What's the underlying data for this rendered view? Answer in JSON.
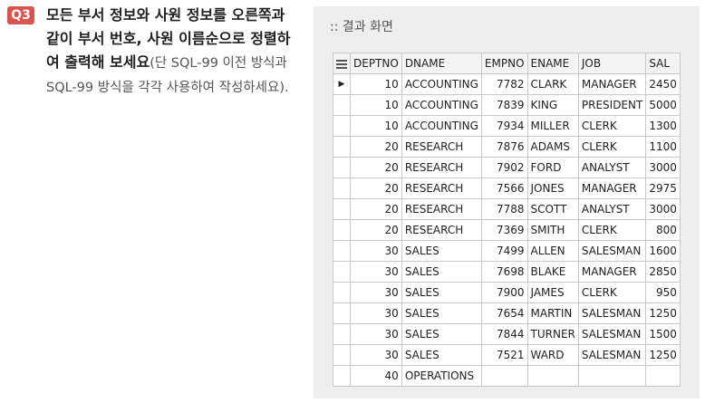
{
  "question": {
    "badge": "Q3",
    "bold_text": "모든 부서 정보와 사원 정보를 오른쪽과 같이 부서 번호, 사원 이름순으로 정렬하여 출력해 보세요",
    "note": "(단 SQL-99 이전 방식과 SQL-99 방식을 각각 사용하여 작성하세요)."
  },
  "result": {
    "title": ":: 결과 화면",
    "grid_icon": "grid-menu-icon",
    "columns": [
      "DEPTNO",
      "DNAME",
      "EMPNO",
      "ENAME",
      "JOB",
      "SAL"
    ],
    "current_row_marker": "▶",
    "rows": [
      [
        "10",
        "ACCOUNTING",
        "7782",
        "CLARK",
        "MANAGER",
        "2450"
      ],
      [
        "10",
        "ACCOUNTING",
        "7839",
        "KING",
        "PRESIDENT",
        "5000"
      ],
      [
        "10",
        "ACCOUNTING",
        "7934",
        "MILLER",
        "CLERK",
        "1300"
      ],
      [
        "20",
        "RESEARCH",
        "7876",
        "ADAMS",
        "CLERK",
        "1100"
      ],
      [
        "20",
        "RESEARCH",
        "7902",
        "FORD",
        "ANALYST",
        "3000"
      ],
      [
        "20",
        "RESEARCH",
        "7566",
        "JONES",
        "MANAGER",
        "2975"
      ],
      [
        "20",
        "RESEARCH",
        "7788",
        "SCOTT",
        "ANALYST",
        "3000"
      ],
      [
        "20",
        "RESEARCH",
        "7369",
        "SMITH",
        "CLERK",
        "800"
      ],
      [
        "30",
        "SALES",
        "7499",
        "ALLEN",
        "SALESMAN",
        "1600"
      ],
      [
        "30",
        "SALES",
        "7698",
        "BLAKE",
        "MANAGER",
        "2850"
      ],
      [
        "30",
        "SALES",
        "7900",
        "JAMES",
        "CLERK",
        "950"
      ],
      [
        "30",
        "SALES",
        "7654",
        "MARTIN",
        "SALESMAN",
        "1250"
      ],
      [
        "30",
        "SALES",
        "7844",
        "TURNER",
        "SALESMAN",
        "1500"
      ],
      [
        "30",
        "SALES",
        "7521",
        "WARD",
        "SALESMAN",
        "1250"
      ],
      [
        "40",
        "OPERATIONS",
        "",
        "",
        "",
        ""
      ]
    ]
  }
}
